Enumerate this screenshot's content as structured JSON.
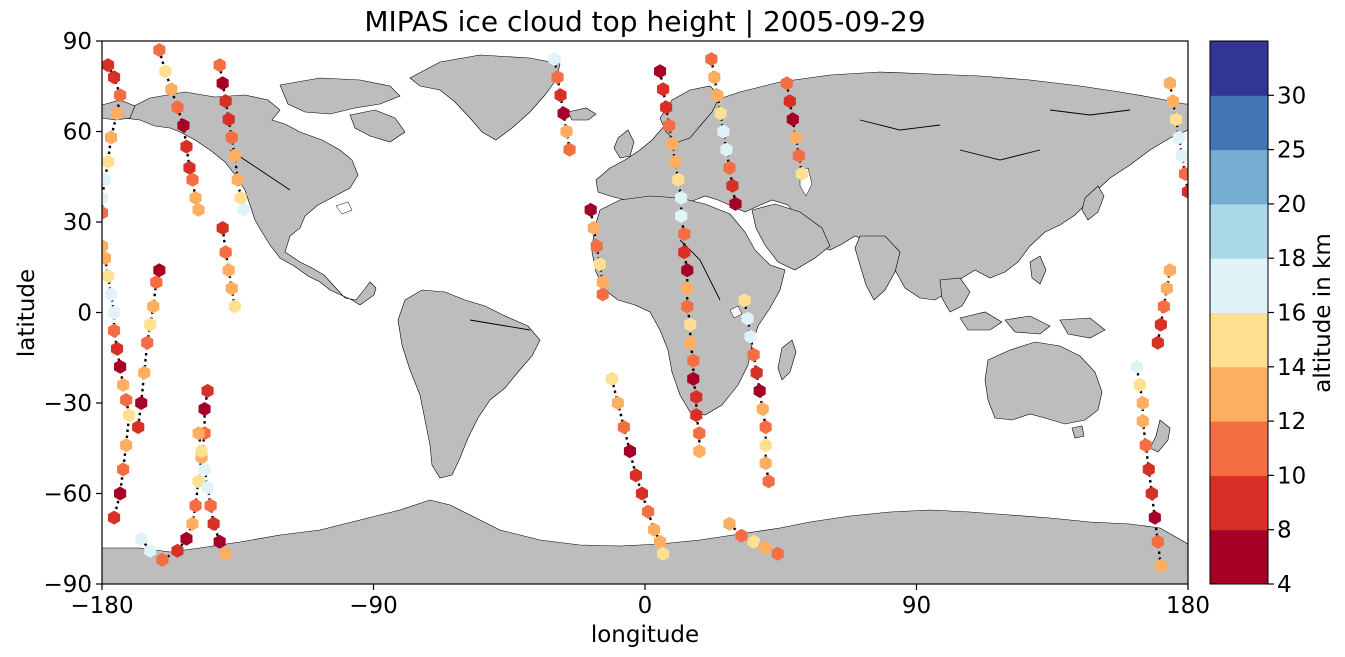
{
  "chart_data": {
    "type": "scatter",
    "title": "MIPAS ice cloud top height | 2005-09-29",
    "xlabel": "longitude",
    "ylabel": "latitude",
    "xlim": [
      -180,
      180
    ],
    "ylim": [
      -90,
      90
    ],
    "xticks": [
      "−180",
      "−90",
      "0",
      "90",
      "180"
    ],
    "xtick_values": [
      -180,
      -90,
      0,
      90,
      180
    ],
    "yticks": [
      "−90",
      "−60",
      "−30",
      "0",
      "30",
      "60",
      "90"
    ],
    "ytick_values": [
      -90,
      -60,
      -30,
      0,
      30,
      60,
      90
    ],
    "colorbar": {
      "label": "altitude in km",
      "boundaries": [
        4,
        8,
        10,
        12,
        14,
        16,
        18,
        20,
        25,
        30
      ],
      "tick_labels": [
        "4",
        "8",
        "10",
        "12",
        "14",
        "16",
        "18",
        "20",
        "25",
        "30"
      ],
      "colors": [
        "#a50026",
        "#d73027",
        "#f46d43",
        "#fdae61",
        "#fee090",
        "#e0f3f8",
        "#abd9e9",
        "#74add1",
        "#4575b4",
        "#313695"
      ]
    },
    "tracks": [
      {
        "cloud_altitude_km": "varies",
        "points": [
          [
            -178,
            82
          ],
          [
            -176,
            78
          ],
          [
            -174,
            72
          ],
          [
            -175,
            66
          ],
          [
            -177,
            58
          ],
          [
            -178,
            50
          ],
          [
            -179,
            44
          ],
          [
            -180,
            38
          ],
          [
            -180,
            33
          ]
        ]
      },
      {
        "points": [
          [
            -180,
            22
          ],
          [
            -179,
            18
          ],
          [
            -178,
            12
          ],
          [
            -177,
            6
          ],
          [
            -176,
            0
          ],
          [
            -176,
            -6
          ],
          [
            -175,
            -12
          ],
          [
            -174,
            -18
          ],
          [
            -173,
            -24
          ],
          [
            -172,
            -29
          ],
          [
            -171,
            -34
          ],
          [
            -172,
            -44
          ],
          [
            -173,
            -52
          ],
          [
            -174,
            -60
          ],
          [
            -176,
            -68
          ]
        ]
      },
      {
        "points": [
          [
            -167,
            -75
          ],
          [
            -164,
            -79
          ],
          [
            -160,
            -82
          ],
          [
            -155,
            -79
          ],
          [
            -152,
            -75
          ],
          [
            -150,
            -70
          ],
          [
            -149,
            -64
          ],
          [
            -148,
            -56
          ],
          [
            -147,
            -48
          ],
          [
            -146,
            -40
          ],
          [
            -146,
            -32
          ],
          [
            -145,
            -26
          ]
        ]
      },
      {
        "points": [
          [
            -168,
            -38
          ],
          [
            -167,
            -30
          ],
          [
            -166,
            -20
          ],
          [
            -165,
            -10
          ],
          [
            -164,
            -4
          ],
          [
            -163,
            2
          ],
          [
            -162,
            10
          ],
          [
            -161,
            14
          ]
        ]
      },
      {
        "points": [
          [
            -161,
            87
          ],
          [
            -159,
            80
          ],
          [
            -157,
            74
          ],
          [
            -155,
            68
          ],
          [
            -153,
            62
          ],
          [
            -152,
            55
          ],
          [
            -151,
            48
          ],
          [
            -150,
            44
          ],
          [
            -149,
            38
          ],
          [
            -148,
            34
          ]
        ]
      },
      {
        "points": [
          [
            -141,
            82
          ],
          [
            -140,
            76
          ],
          [
            -139,
            70
          ],
          [
            -138,
            64
          ],
          [
            -137,
            58
          ],
          [
            -136,
            52
          ],
          [
            -135,
            44
          ],
          [
            -134,
            38
          ],
          [
            -133,
            34
          ]
        ]
      },
      {
        "points": [
          [
            -140,
            28
          ],
          [
            -139,
            20
          ],
          [
            -138,
            14
          ],
          [
            -137,
            8
          ],
          [
            -136,
            2
          ]
        ]
      },
      {
        "points": [
          [
            -148,
            -40
          ],
          [
            -147,
            -46
          ],
          [
            -146,
            -52
          ],
          [
            -145,
            -58
          ],
          [
            -144,
            -64
          ],
          [
            -143,
            -70
          ],
          [
            -141,
            -76
          ],
          [
            -139,
            -80
          ]
        ]
      },
      {
        "points": [
          [
            -30,
            84
          ],
          [
            -29,
            78
          ],
          [
            -28,
            72
          ],
          [
            -27,
            66
          ],
          [
            -26,
            60
          ],
          [
            -25,
            54
          ]
        ]
      },
      {
        "points": [
          [
            -18,
            34
          ],
          [
            -17,
            28
          ],
          [
            -16,
            22
          ],
          [
            -15,
            16
          ],
          [
            -14,
            10
          ],
          [
            -14,
            6
          ]
        ]
      },
      {
        "points": [
          [
            -11,
            -22
          ],
          [
            -9,
            -30
          ],
          [
            -7,
            -38
          ],
          [
            -5,
            -46
          ],
          [
            -3,
            -54
          ],
          [
            -1,
            -60
          ],
          [
            1,
            -66
          ],
          [
            3,
            -72
          ],
          [
            5,
            -76
          ],
          [
            6,
            -80
          ]
        ]
      },
      {
        "points": [
          [
            5,
            80
          ],
          [
            6,
            74
          ],
          [
            7,
            68
          ],
          [
            8,
            62
          ],
          [
            9,
            56
          ],
          [
            10,
            50
          ],
          [
            11,
            44
          ],
          [
            12,
            38
          ],
          [
            12,
            32
          ],
          [
            13,
            26
          ],
          [
            13,
            20
          ],
          [
            14,
            14
          ],
          [
            14,
            8
          ],
          [
            14,
            2
          ],
          [
            15,
            -4
          ],
          [
            15,
            -10
          ],
          [
            16,
            -16
          ],
          [
            16,
            -22
          ],
          [
            17,
            -28
          ],
          [
            17,
            -34
          ],
          [
            18,
            -40
          ],
          [
            18,
            -46
          ]
        ]
      },
      {
        "points": [
          [
            22,
            84
          ],
          [
            23,
            78
          ],
          [
            24,
            72
          ],
          [
            25,
            66
          ],
          [
            26,
            60
          ],
          [
            27,
            54
          ],
          [
            28,
            48
          ],
          [
            29,
            42
          ],
          [
            30,
            36
          ]
        ]
      },
      {
        "points": [
          [
            33,
            4
          ],
          [
            34,
            -2
          ],
          [
            35,
            -8
          ],
          [
            36,
            -14
          ],
          [
            37,
            -20
          ],
          [
            38,
            -26
          ],
          [
            39,
            -32
          ],
          [
            40,
            -38
          ],
          [
            40,
            -44
          ],
          [
            40,
            -50
          ],
          [
            41,
            -56
          ]
        ]
      },
      {
        "points": [
          [
            47,
            76
          ],
          [
            48,
            70
          ],
          [
            49,
            64
          ],
          [
            50,
            58
          ],
          [
            51,
            52
          ],
          [
            52,
            46
          ]
        ]
      },
      {
        "points": [
          [
            28,
            -70
          ],
          [
            32,
            -74
          ],
          [
            36,
            -76
          ],
          [
            40,
            -78
          ],
          [
            44,
            -80
          ]
        ]
      },
      {
        "points": [
          [
            171,
            -84
          ],
          [
            170,
            -76
          ],
          [
            169,
            -68
          ],
          [
            168,
            -60
          ],
          [
            167,
            -52
          ],
          [
            166,
            -44
          ],
          [
            165,
            -36
          ],
          [
            165,
            -30
          ],
          [
            164,
            -24
          ],
          [
            163,
            -18
          ]
        ]
      },
      {
        "points": [
          [
            170,
            -10
          ],
          [
            171,
            -4
          ],
          [
            172,
            2
          ],
          [
            173,
            8
          ],
          [
            174,
            14
          ]
        ]
      },
      {
        "points": [
          [
            174,
            76
          ],
          [
            175,
            70
          ],
          [
            176,
            64
          ],
          [
            177,
            58
          ],
          [
            178,
            52
          ],
          [
            179,
            46
          ],
          [
            180,
            40
          ]
        ]
      }
    ]
  }
}
